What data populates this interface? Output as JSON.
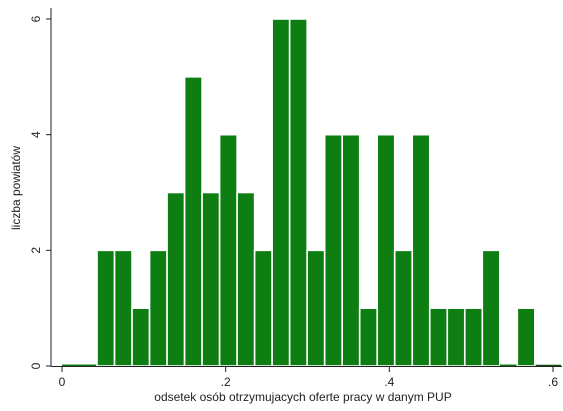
{
  "chart_data": {
    "type": "bar",
    "title": "",
    "xlabel": "odsetek osób otrzymujacych oferte pracy w danym PUP",
    "ylabel": "liczba powiatów",
    "xlim": [
      0,
      0.6
    ],
    "ylim": [
      0,
      6
    ],
    "bin_width": 0.0214,
    "bins": [
      {
        "start": 0.0,
        "value": 0
      },
      {
        "start": 0.0214,
        "value": 0
      },
      {
        "start": 0.0428,
        "value": 2
      },
      {
        "start": 0.0642,
        "value": 2
      },
      {
        "start": 0.0856,
        "value": 1
      },
      {
        "start": 0.107,
        "value": 2
      },
      {
        "start": 0.1284,
        "value": 3
      },
      {
        "start": 0.1498,
        "value": 5
      },
      {
        "start": 0.1712,
        "value": 3
      },
      {
        "start": 0.1926,
        "value": 4
      },
      {
        "start": 0.214,
        "value": 3
      },
      {
        "start": 0.2354,
        "value": 2
      },
      {
        "start": 0.2568,
        "value": 6
      },
      {
        "start": 0.2782,
        "value": 6
      },
      {
        "start": 0.2996,
        "value": 2
      },
      {
        "start": 0.321,
        "value": 4
      },
      {
        "start": 0.3424,
        "value": 4
      },
      {
        "start": 0.3638,
        "value": 1
      },
      {
        "start": 0.3852,
        "value": 4
      },
      {
        "start": 0.4066,
        "value": 2
      },
      {
        "start": 0.428,
        "value": 4
      },
      {
        "start": 0.4494,
        "value": 1
      },
      {
        "start": 0.4708,
        "value": 1
      },
      {
        "start": 0.4922,
        "value": 1
      },
      {
        "start": 0.5136,
        "value": 2
      },
      {
        "start": 0.535,
        "value": 0
      },
      {
        "start": 0.5564,
        "value": 1
      }
    ],
    "x_ticks": [
      {
        "value": 0,
        "label": "0"
      },
      {
        "value": 0.2,
        "label": ".2"
      },
      {
        "value": 0.4,
        "label": ".4"
      },
      {
        "value": 0.6,
        "label": ".6"
      }
    ],
    "y_ticks": [
      {
        "value": 0,
        "label": "0"
      },
      {
        "value": 2,
        "label": "2"
      },
      {
        "value": 4,
        "label": "4"
      },
      {
        "value": 6,
        "label": "6"
      }
    ],
    "bar_color": "#0e7e12",
    "bar_edge_color": "#ffffff",
    "grid": false,
    "legend": "none"
  }
}
